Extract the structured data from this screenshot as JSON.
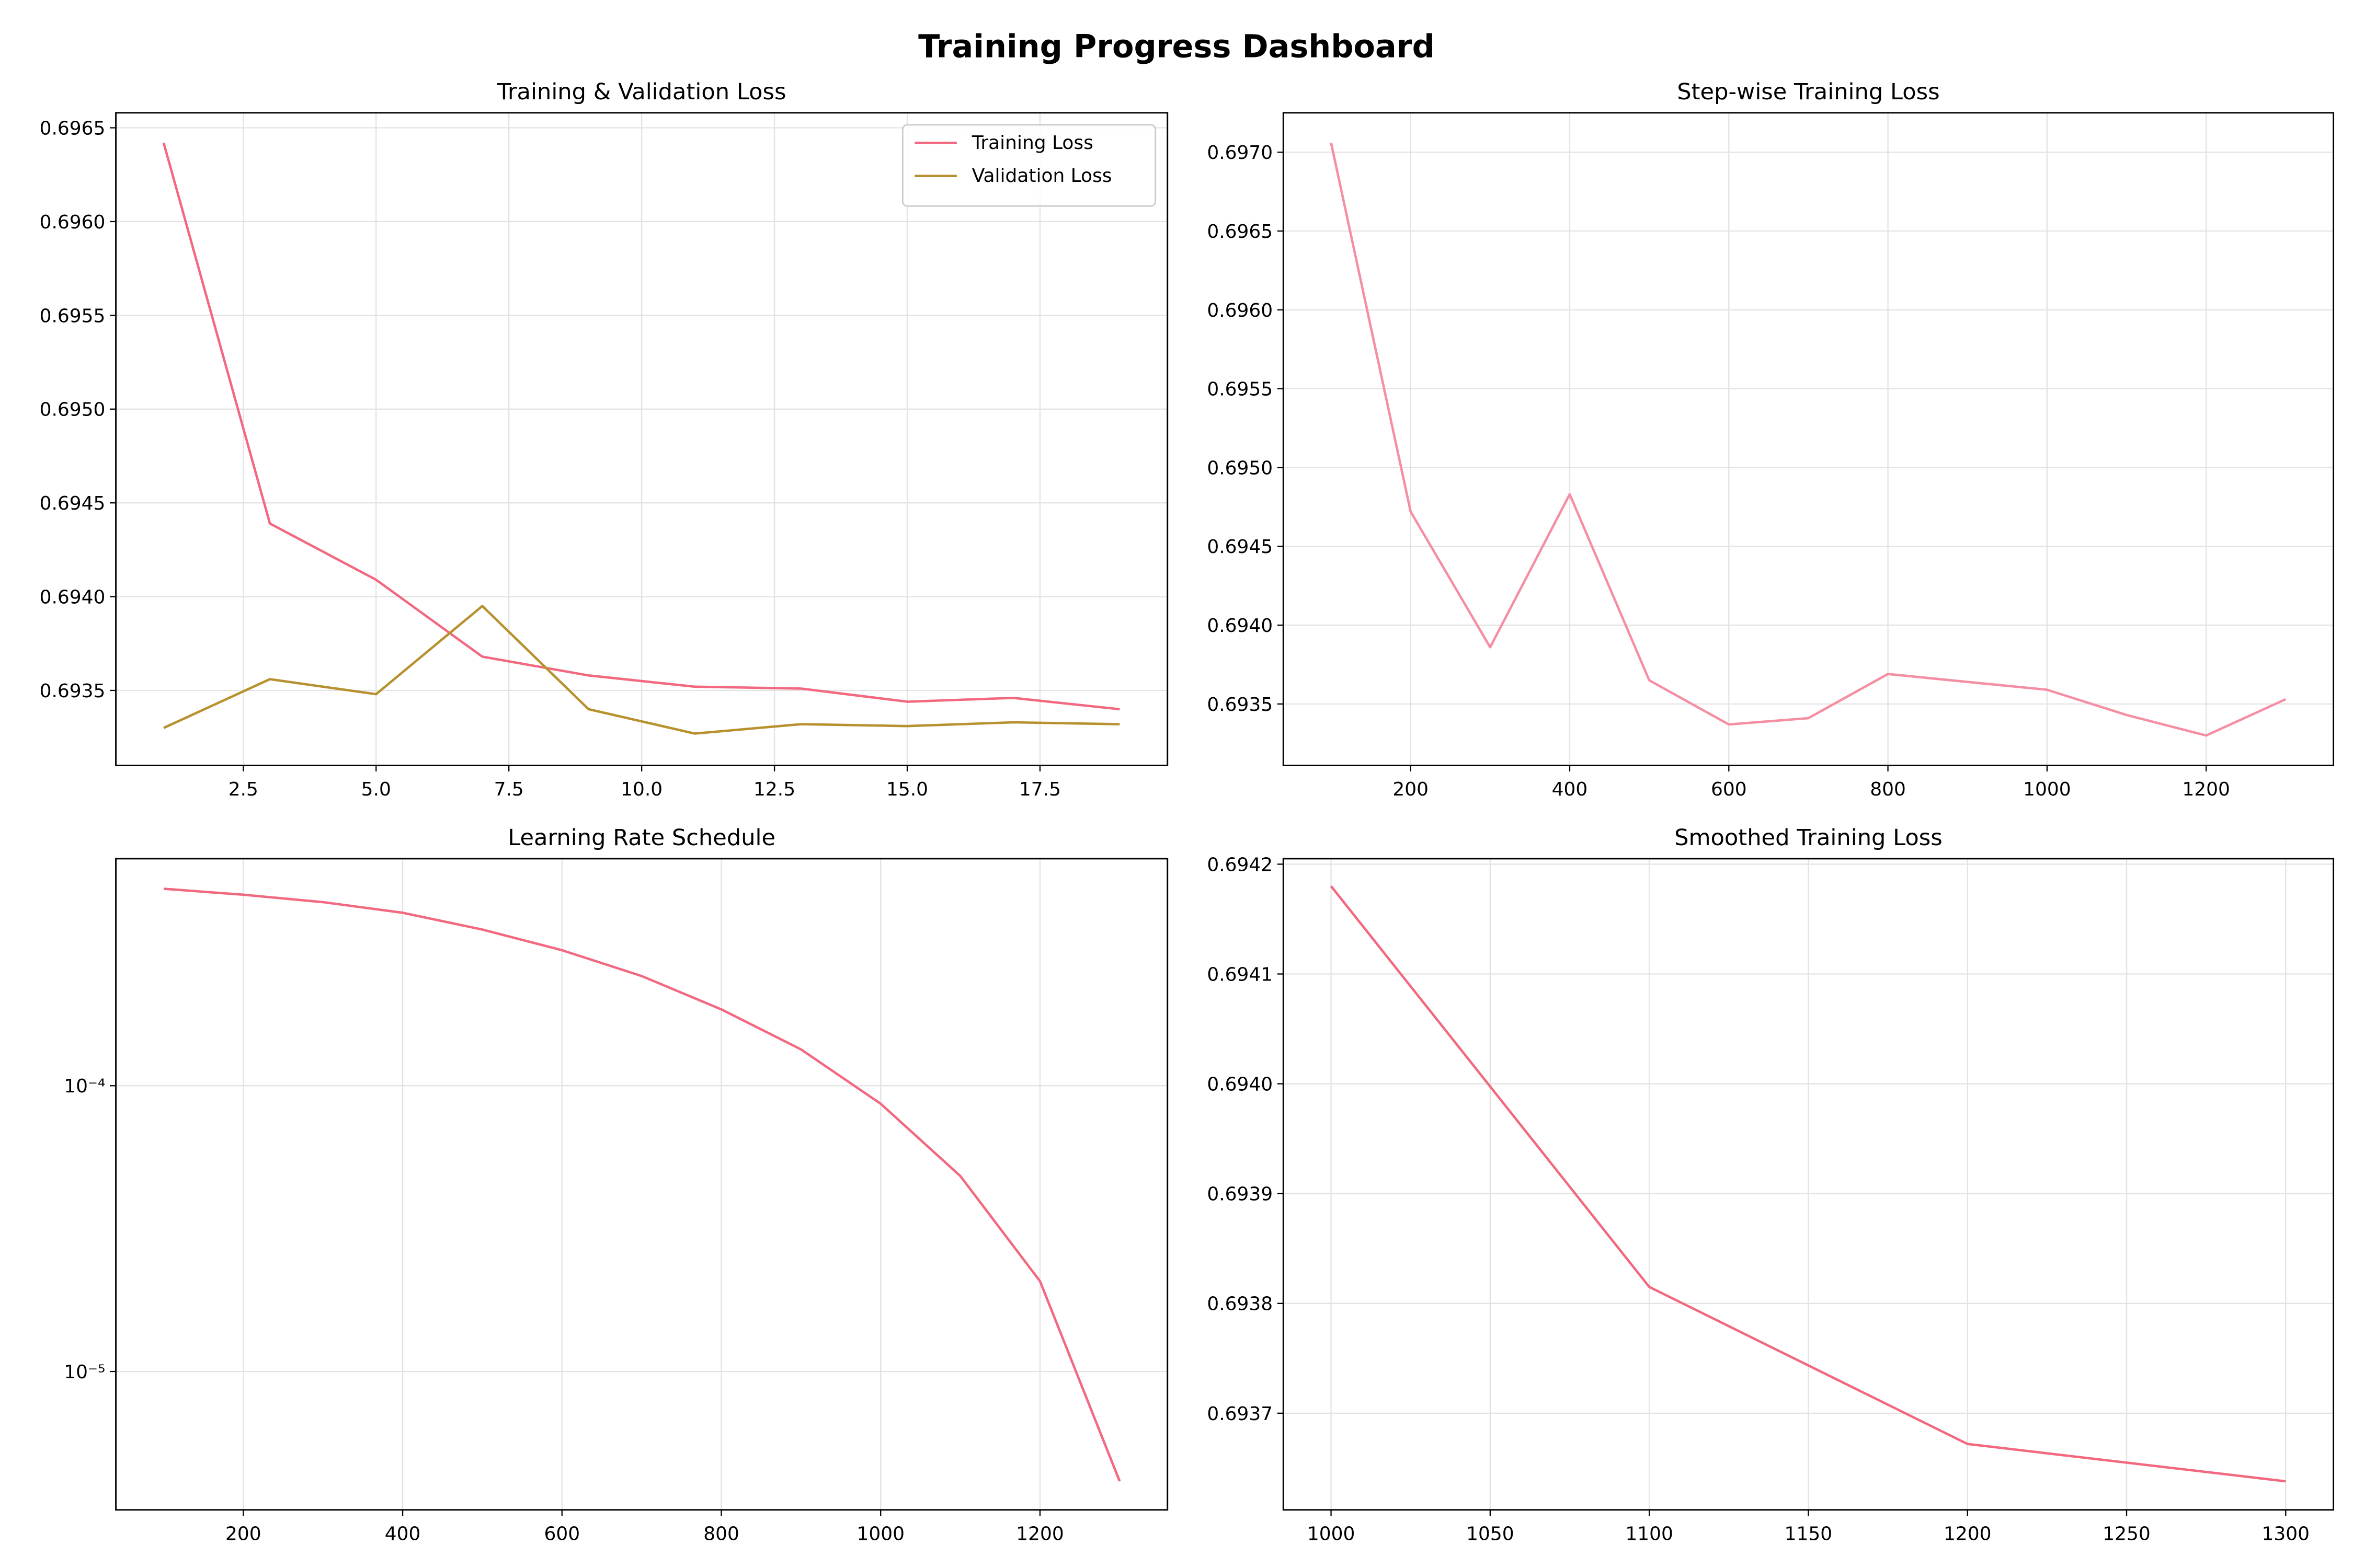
{
  "title": "Training Progress Dashboard",
  "chart_data": [
    {
      "type": "line",
      "title": "Training & Validation Loss",
      "x": [
        1,
        3,
        5,
        7,
        9,
        11,
        13,
        15,
        17,
        19
      ],
      "series": [
        {
          "name": "Training Loss",
          "color": "#f2687f",
          "values": [
            0.69642,
            0.69439,
            0.69409,
            0.69368,
            0.69358,
            0.69352,
            0.69351,
            0.69344,
            0.69346,
            0.6934
          ]
        },
        {
          "name": "Validation Loss",
          "color": "#b8912f",
          "values": [
            0.6933,
            0.69356,
            0.69348,
            0.69395,
            0.6934,
            0.69327,
            0.69332,
            0.69331,
            0.69333,
            0.69332
          ]
        }
      ],
      "xlim": [
        0.1,
        19.9
      ],
      "xticks": [
        2.5,
        {
          "value": 5,
          "label": "5.0"
        },
        7.5,
        {
          "value": 10,
          "label": "10.0"
        },
        12.5,
        {
          "value": 15,
          "label": "15.0"
        },
        17.5
      ],
      "ylim": [
        0.6931,
        0.69658
      ],
      "yticks": [
        0.6935,
        {
          "value": 0.694,
          "label": "0.6940"
        },
        0.6945,
        {
          "value": 0.695,
          "label": "0.6950"
        },
        0.6955,
        {
          "value": 0.696,
          "label": "0.6960"
        },
        0.6965
      ],
      "grid": true,
      "legend": "upper right"
    },
    {
      "type": "line",
      "title": "Step-wise Training Loss",
      "x": [
        100,
        200,
        300,
        400,
        500,
        600,
        700,
        800,
        900,
        1000,
        1100,
        1200,
        1300
      ],
      "series": [
        {
          "color": "#f58ea3",
          "values": [
            0.69706,
            0.69472,
            0.69386,
            0.69483,
            0.69365,
            0.69337,
            0.69341,
            0.69369,
            0.69364,
            0.69359,
            0.69343,
            0.6933,
            0.69353
          ]
        }
      ],
      "xlim": [
        40,
        1360
      ],
      "xticks": [
        200,
        400,
        600,
        800,
        1000,
        1200
      ],
      "ylim": [
        0.69311,
        0.69725
      ],
      "yticks": [
        0.6935,
        {
          "value": 0.694,
          "label": "0.6940"
        },
        0.6945,
        {
          "value": 0.695,
          "label": "0.6950"
        },
        0.6955,
        {
          "value": 0.696,
          "label": "0.6960"
        },
        0.6965,
        {
          "value": 0.697,
          "label": "0.6970"
        }
      ],
      "grid": true
    },
    {
      "type": "line",
      "title": "Learning Rate Schedule",
      "x": [
        100,
        200,
        300,
        400,
        500,
        600,
        700,
        800,
        900,
        1000,
        1100,
        1200,
        1300
      ],
      "series": [
        {
          "color": "#f2687f",
          "values": [
            0.000489,
            0.000466,
            0.000439,
            0.000403,
            0.000352,
            0.000298,
            0.000242,
            0.000185,
            0.000134,
            8.65e-05,
            4.83e-05,
            2.07e-05,
            4.13e-06
          ]
        }
      ],
      "xlim": [
        40,
        1360
      ],
      "xticks": [
        200,
        400,
        600,
        800,
        1000,
        1200
      ],
      "yscale": "log",
      "ylim": [
        3.28e-06,
        0.000623
      ],
      "yticks": [
        {
          "value": 1e-05,
          "label": "10⁻⁵"
        },
        {
          "value": 0.0001,
          "label": "10⁻⁴"
        }
      ],
      "grid": true
    },
    {
      "type": "line",
      "title": "Smoothed Training Loss",
      "x": [
        1000,
        1100,
        1200,
        1300
      ],
      "series": [
        {
          "color": "#f2687f",
          "values": [
            0.69418,
            0.693815,
            0.693672,
            0.693638
          ]
        }
      ],
      "xlim": [
        985,
        1315
      ],
      "xticks": [
        1000,
        1050,
        1100,
        1150,
        1200,
        1250,
        1300
      ],
      "ylim": [
        0.693612,
        0.694205
      ],
      "yticks": [
        0.6937,
        0.6938,
        0.6939,
        {
          "value": 0.694,
          "label": "0.6940"
        },
        0.6941,
        0.6942
      ],
      "grid": true
    }
  ]
}
